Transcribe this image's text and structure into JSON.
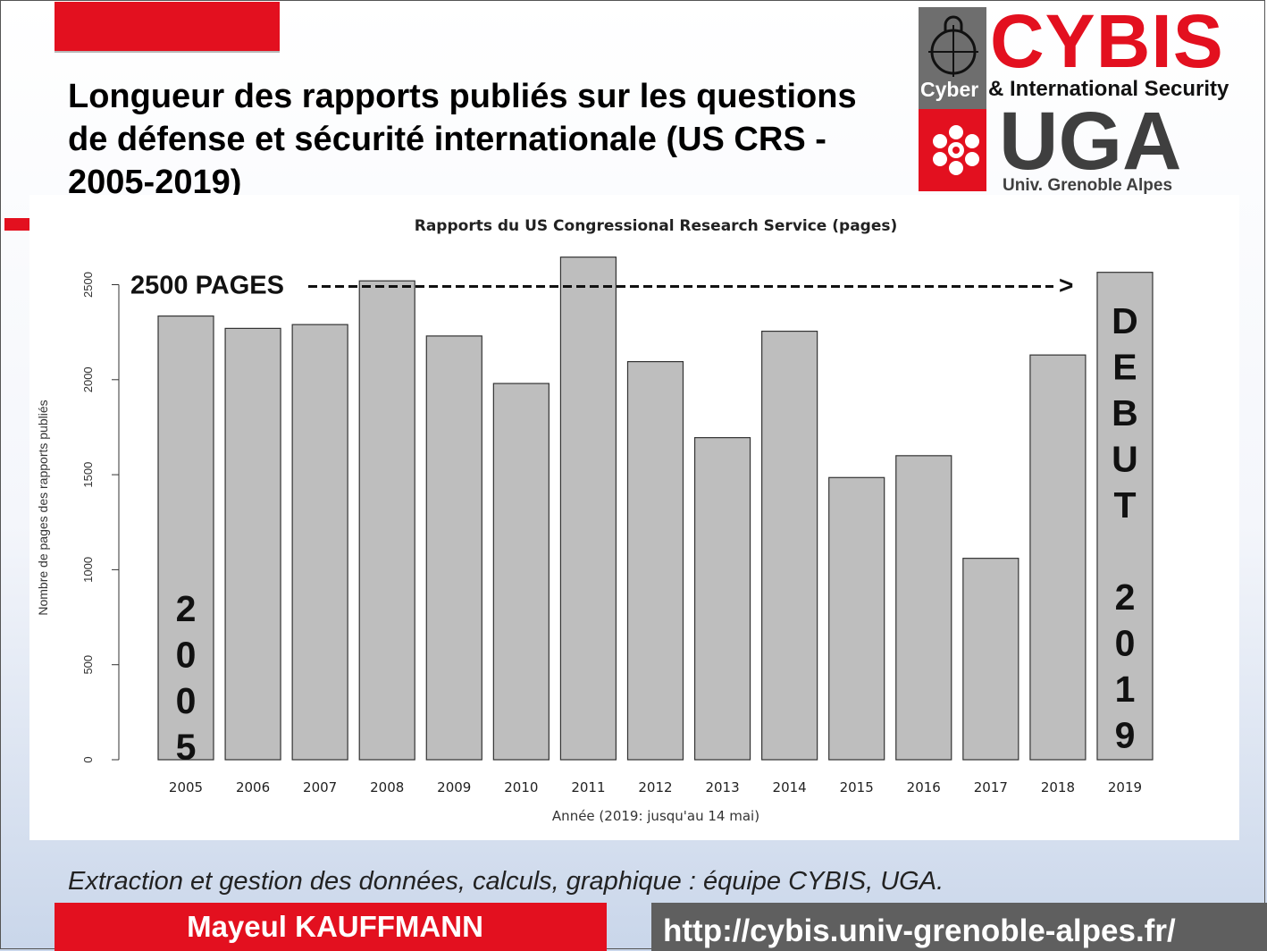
{
  "title": "Longueur des rapports publiés sur les questions de défense et sécurité internationale (US CRS - 2005-2019)",
  "logo": {
    "brand": "CYBIS",
    "cyber": "Cyber",
    "intl": "& International Security",
    "uga": "UGA",
    "univ": "Univ. Grenoble Alpes"
  },
  "chart_data": {
    "type": "bar",
    "title": "Rapports du US Congressional Research Service (pages)",
    "xlabel": "Année (2019: jusqu'au 14 mai)",
    "ylabel": "Nombre de pages des rapports publiés",
    "categories": [
      "2005",
      "2006",
      "2007",
      "2008",
      "2009",
      "2010",
      "2011",
      "2012",
      "2013",
      "2014",
      "2015",
      "2016",
      "2017",
      "2018",
      "2019"
    ],
    "values": [
      2335,
      2270,
      2290,
      2520,
      2230,
      1980,
      2645,
      2095,
      1695,
      2255,
      1485,
      1600,
      1060,
      2130,
      2565
    ],
    "ylim": [
      0,
      2700
    ],
    "yticks": [
      0,
      500,
      1000,
      1500,
      2000,
      2500
    ],
    "bar_color": "#bebebe",
    "annotations": {
      "reference_label": "2500 PAGES",
      "reference_value": 2500,
      "arrow": ">",
      "first_bar_label": [
        "2",
        "0",
        "0",
        "5"
      ],
      "last_bar_label_top": [
        "D",
        "E",
        "B",
        "U",
        "T"
      ],
      "last_bar_label_bottom": [
        "2",
        "0",
        "1",
        "9"
      ]
    }
  },
  "footer": {
    "source": "Extraction et gestion des données, calculs, graphique : équipe CYBIS, UGA.",
    "author": "Mayeul KAUFFMANN",
    "url": "http://cybis.univ-grenoble-alpes.fr/"
  },
  "colors": {
    "accent_red": "#e3101f",
    "dark_gray": "#5f5f5f"
  }
}
